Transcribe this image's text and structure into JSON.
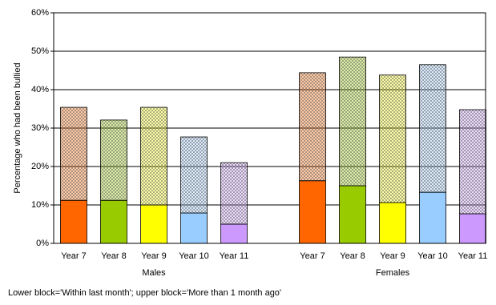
{
  "chart_data": {
    "type": "grouped-stacked-bar",
    "y_label": "Percentage who had been bullied",
    "note": "Lower block='Within last month'; upper block='More than 1 month ago'",
    "colors": [
      "#ff6600",
      "#99cc00",
      "#ffff00",
      "#99ccff",
      "#cc99ff"
    ],
    "groups": [
      {
        "label": "Males",
        "categories": [
          "Year 7",
          "Year 8",
          "Year 9",
          "Year 10",
          "Year 11"
        ],
        "values_lower": [
          11.2,
          11.2,
          10.0,
          7.9,
          5.0
        ],
        "values_upper": [
          24.2,
          20.9,
          25.4,
          19.8,
          16.0
        ]
      },
      {
        "label": "Females",
        "categories": [
          "Year 7",
          "Year 8",
          "Year 9",
          "Year 10",
          "Year 11"
        ],
        "values_lower": [
          16.3,
          15.0,
          10.6,
          13.3,
          7.7
        ],
        "values_upper": [
          28.1,
          33.5,
          33.2,
          33.2,
          27.1
        ]
      }
    ],
    "ylim": [
      0,
      60
    ],
    "yticks": [
      {
        "value": 0,
        "label": "0%"
      },
      {
        "value": 10,
        "label": "10%"
      },
      {
        "value": 20,
        "label": "20%"
      },
      {
        "value": 30,
        "label": "30%"
      },
      {
        "value": 40,
        "label": "40%"
      },
      {
        "value": 50,
        "label": "50%"
      },
      {
        "value": 60,
        "label": "60%"
      }
    ],
    "grid": true
  }
}
